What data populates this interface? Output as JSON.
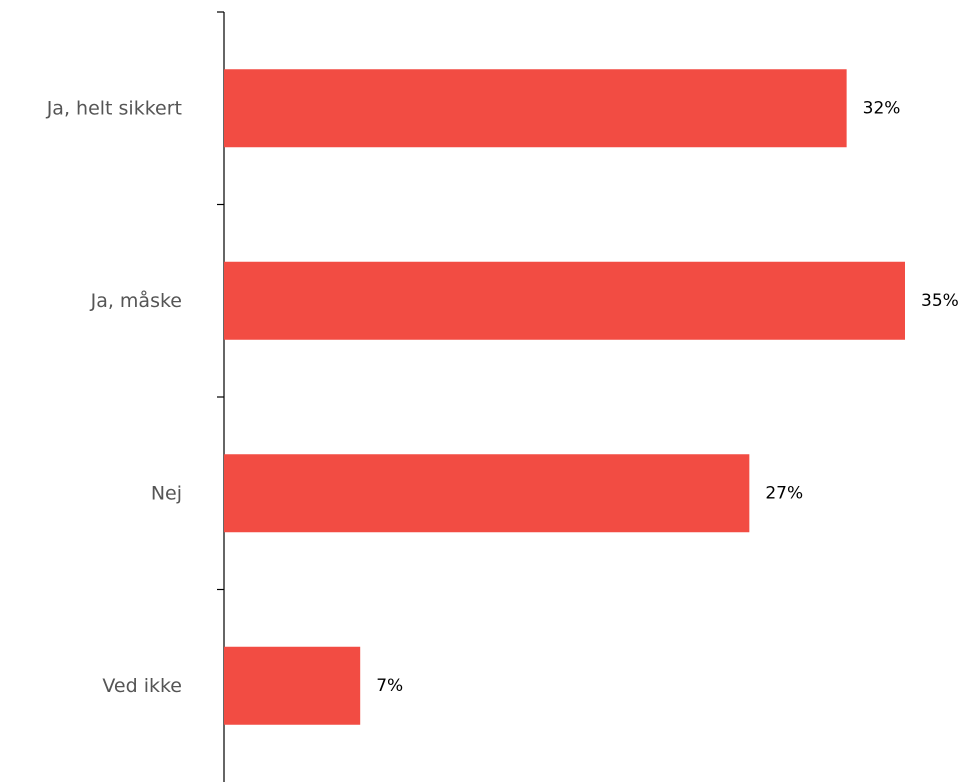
{
  "chart_data": {
    "type": "bar",
    "orientation": "horizontal",
    "categories": [
      "Ja, helt sikkert",
      "Ja, måske",
      "Nej",
      "Ved ikke"
    ],
    "values": [
      32,
      35,
      27,
      7
    ],
    "value_labels": [
      "32%",
      "35%",
      "27%",
      "7%"
    ],
    "unit": "%",
    "xlim": [
      0,
      35
    ],
    "grid": false,
    "legend": "none",
    "bar_color": "#f24c43"
  }
}
